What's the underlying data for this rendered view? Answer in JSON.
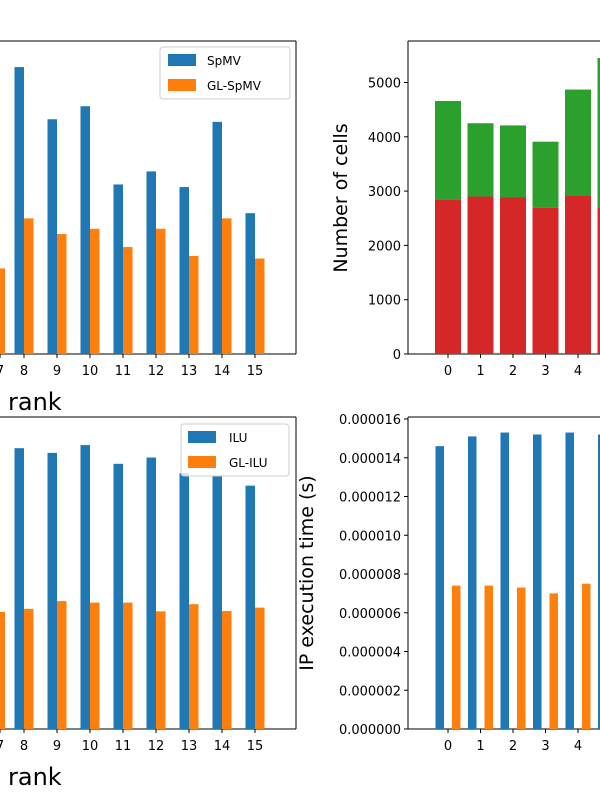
{
  "chart_data": [
    {
      "type": "bar",
      "panel": "top-left",
      "categories": [
        "8",
        "9",
        "10",
        "11",
        "12",
        "13",
        "14",
        "15"
      ],
      "series": [
        {
          "name": "SpMV",
          "color": "#1f77b4",
          "values": [
            0.55,
            0.45,
            0.475,
            0.325,
            0.35,
            0.32,
            0.445,
            0.27
          ]
        },
        {
          "name": "GL-SpMV",
          "color": "#ff7f0e",
          "values": [
            0.26,
            0.23,
            0.24,
            0.205,
            0.24,
            0.188,
            0.26,
            0.183
          ]
        }
      ],
      "leading_partial": {
        "series": "GL-SpMV",
        "value": 0.164
      },
      "xlabel": "rank",
      "ylim": [
        0,
        0.6
      ],
      "legend": "top-right",
      "grid": false
    },
    {
      "type": "bar",
      "stacked": true,
      "panel": "top-right",
      "categories": [
        "0",
        "1",
        "2",
        "3",
        "4"
      ],
      "series": [
        {
          "name": "",
          "color": "#d62728",
          "values": [
            2850,
            2900,
            2890,
            2690,
            2910
          ]
        },
        {
          "name": "",
          "color": "#2ca02c",
          "values": [
            1810,
            1350,
            1320,
            1220,
            1960
          ]
        }
      ],
      "trailing_partial": {
        "bottom": 2700,
        "top": 5450
      },
      "ylabel": "Number of cells",
      "yticks": [
        "0",
        "1000",
        "2000",
        "3000",
        "4000",
        "5000"
      ],
      "ylim": [
        0,
        5800
      ],
      "grid": false
    },
    {
      "type": "bar",
      "panel": "bottom-left",
      "categories": [
        "8",
        "9",
        "10",
        "11",
        "12",
        "13",
        "14",
        "15"
      ],
      "series": [
        {
          "name": "ILU",
          "color": "#1f77b4",
          "values": [
            0.9,
            0.885,
            0.91,
            0.85,
            0.87,
            0.82,
            0.81,
            0.78
          ]
        },
        {
          "name": "GL-ILU",
          "color": "#ff7f0e",
          "values": [
            0.385,
            0.41,
            0.405,
            0.405,
            0.377,
            0.4,
            0.378,
            0.389
          ]
        }
      ],
      "leading_partial": {
        "series": "GL-ILU",
        "value": 0.375
      },
      "xlabel": "rank",
      "ylim": [
        0,
        1.0
      ],
      "legend": "top-right",
      "grid": false
    },
    {
      "type": "bar",
      "panel": "bottom-right",
      "categories": [
        "0",
        "1",
        "2",
        "3",
        "4"
      ],
      "series": [
        {
          "name": "",
          "color": "#1f77b4",
          "values": [
            1.46e-05,
            1.51e-05,
            1.53e-05,
            1.52e-05,
            1.53e-05
          ]
        },
        {
          "name": "",
          "color": "#ff7f0e",
          "values": [
            7.4e-06,
            7.4e-06,
            7.3e-06,
            7e-06,
            7.5e-06
          ]
        }
      ],
      "trailing_partial": {
        "value": 1.52e-05
      },
      "ylabel": "IP execution time (s)",
      "yticks": [
        "0.000000",
        "0.000002",
        "0.000004",
        "0.000006",
        "0.000008",
        "0.000010",
        "0.000012",
        "0.000014",
        "0.000016"
      ],
      "ylim": [
        0,
        1.62e-05
      ],
      "grid": false
    }
  ]
}
